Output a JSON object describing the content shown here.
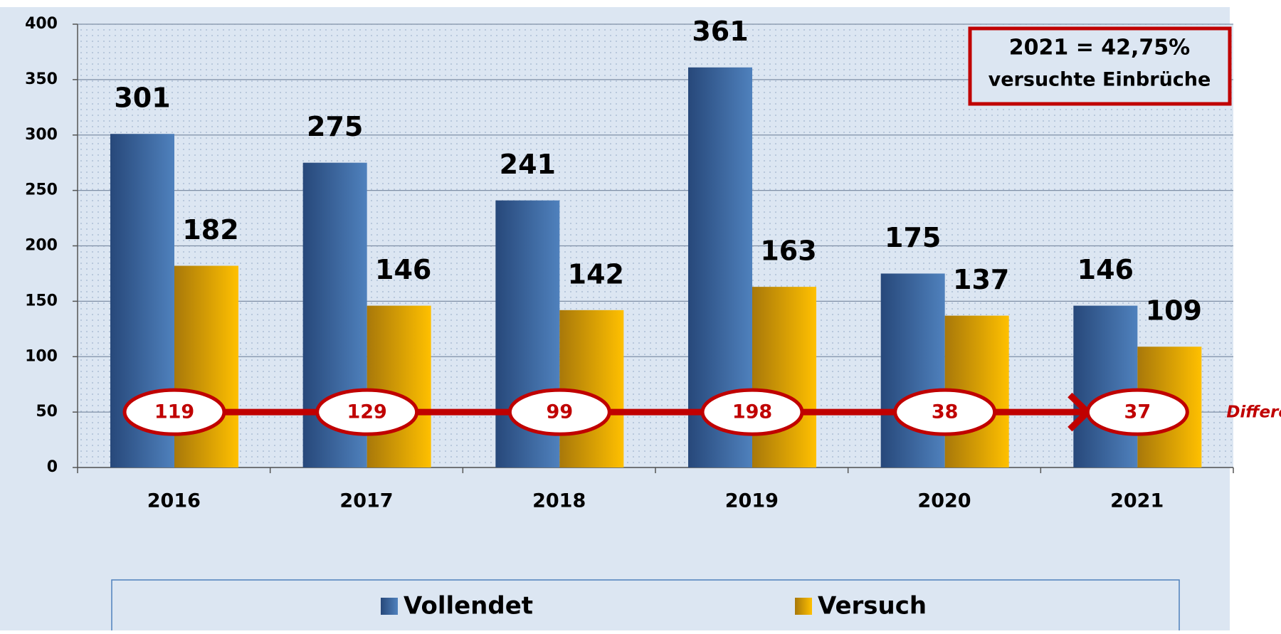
{
  "chart_data": {
    "type": "bar",
    "categories": [
      "2016",
      "2017",
      "2018",
      "2019",
      "2020",
      "2021"
    ],
    "series": [
      {
        "name": "Vollendet",
        "color": "#4f81bd",
        "values": [
          301,
          275,
          241,
          361,
          175,
          146
        ]
      },
      {
        "name": "Versuch",
        "color": "#ffc000",
        "values": [
          182,
          146,
          142,
          163,
          137,
          109
        ]
      }
    ],
    "differences": {
      "label": "Differenz",
      "values": [
        119,
        129,
        99,
        198,
        38,
        37
      ]
    },
    "annotation": [
      "2021 = 42,75%",
      "versuchte Einbrüche"
    ],
    "ylim": [
      0,
      400
    ],
    "yticks": [
      0,
      50,
      100,
      150,
      200,
      250,
      300,
      350,
      400
    ],
    "grid": true,
    "legend": "bottom"
  }
}
